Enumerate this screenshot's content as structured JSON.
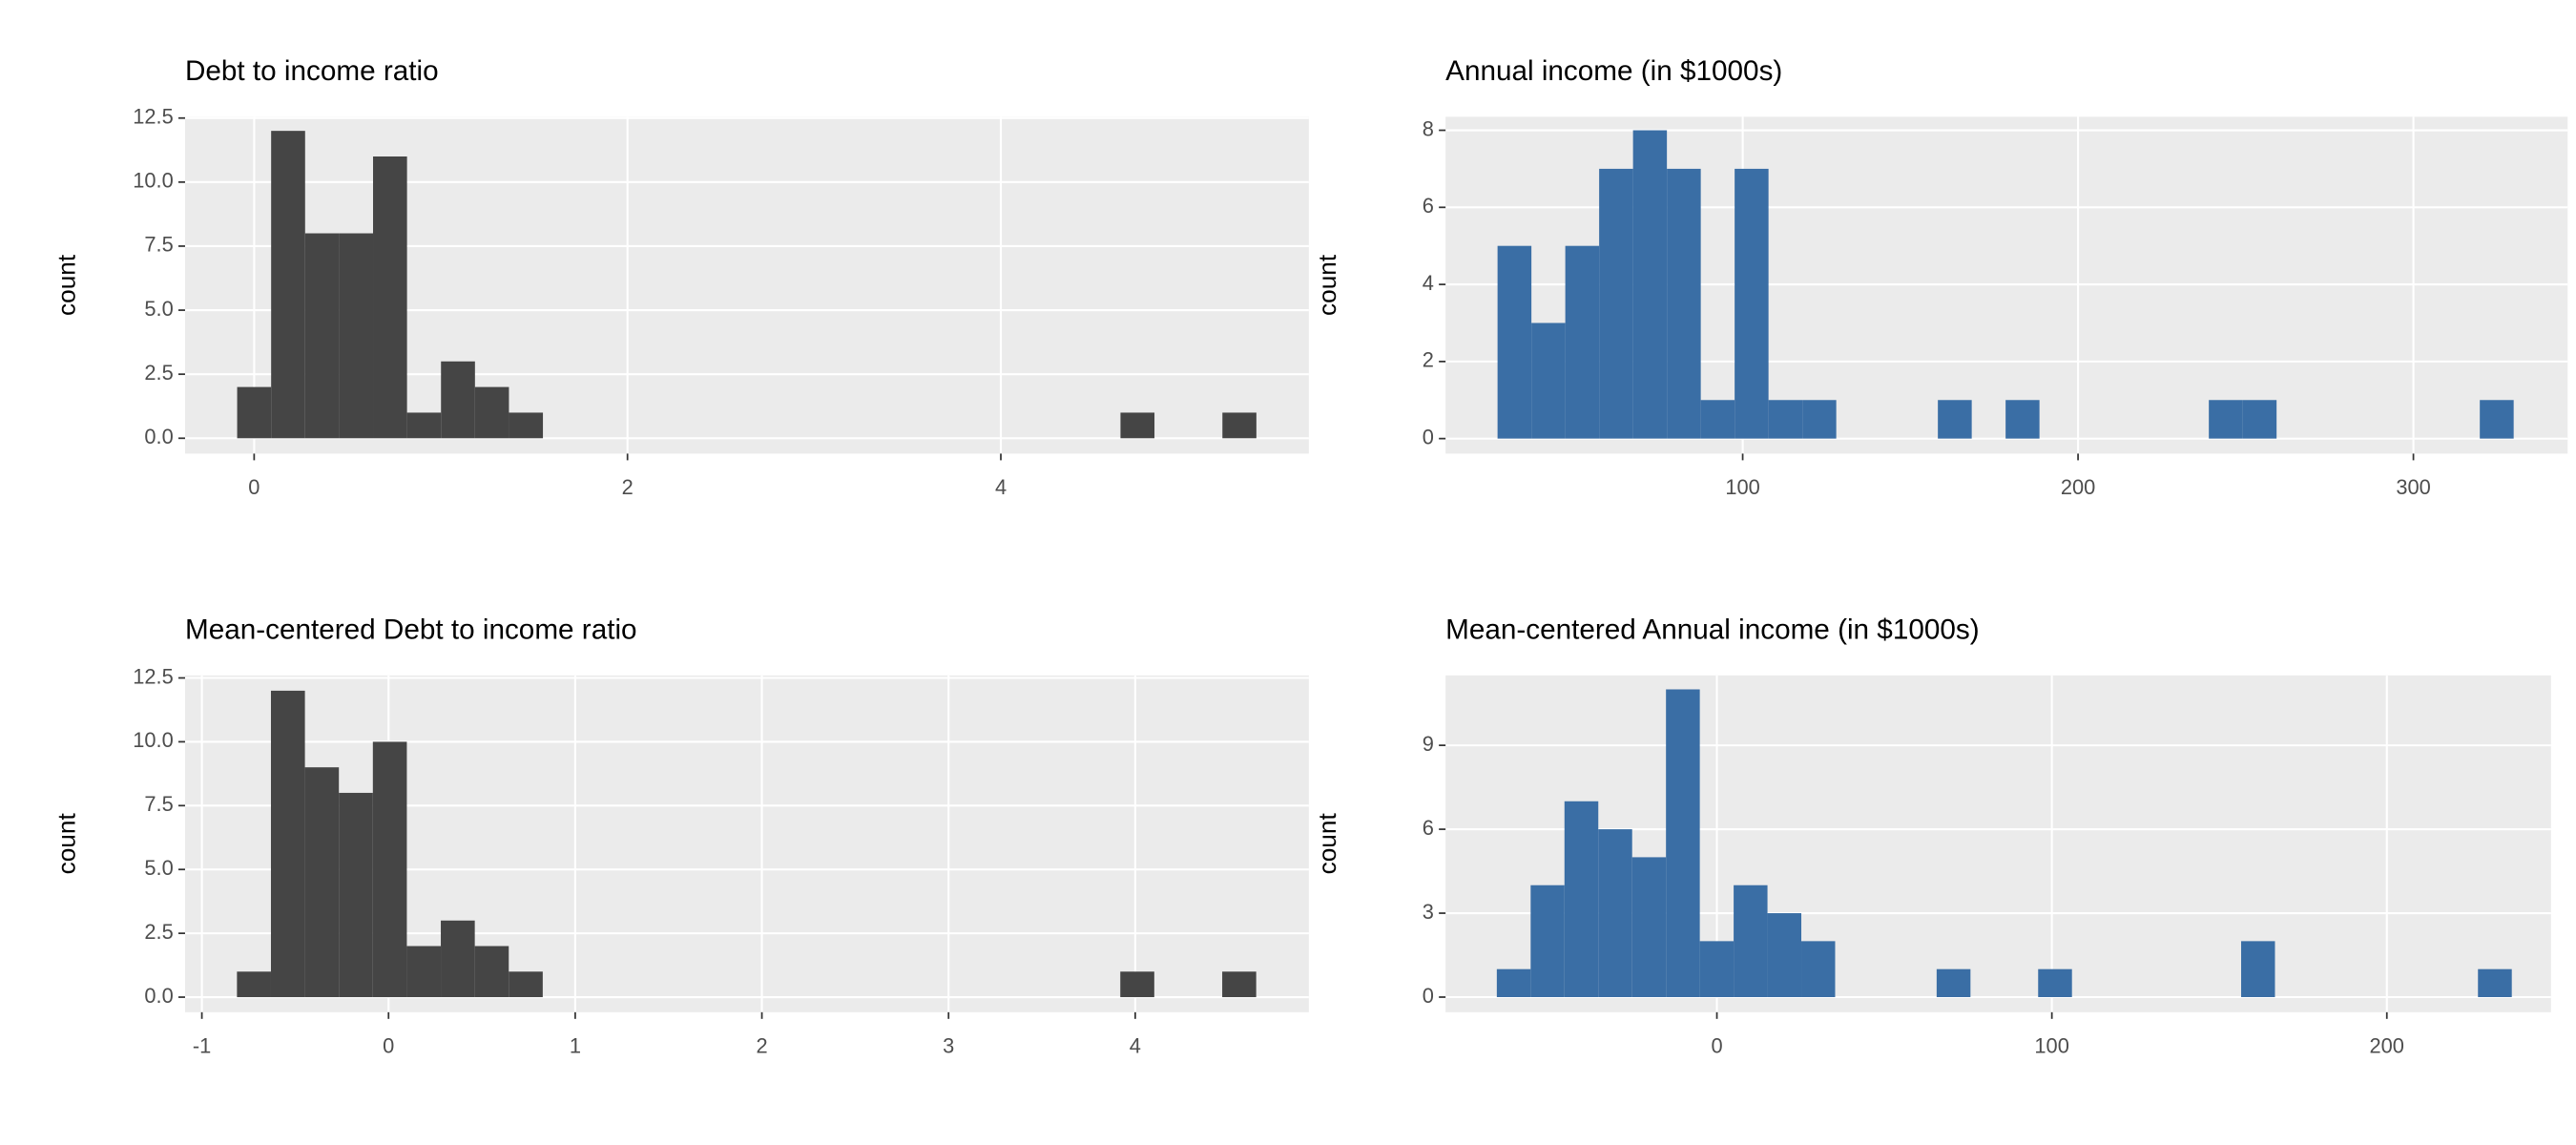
{
  "chart_data": [
    {
      "type": "histogram",
      "title": "Debt to income ratio",
      "ylabel": "count",
      "color": "#454545",
      "grid": true,
      "bins": [
        -0.091,
        0.091,
        0.273,
        0.455,
        0.637,
        0.819,
        1.001,
        1.183,
        1.365,
        1.547,
        1.729,
        1.911,
        2.093,
        2.275,
        2.457,
        2.639,
        2.821,
        3.003,
        3.185,
        3.367,
        3.549,
        3.731,
        3.913,
        4.095,
        4.277,
        4.459,
        4.641,
        4.823,
        5.005,
        5.187,
        5.369
      ],
      "values": [
        2,
        12,
        8,
        8,
        11,
        1,
        3,
        2,
        1,
        0,
        0,
        0,
        0,
        0,
        0,
        0,
        0,
        0,
        0,
        0,
        0,
        0,
        0,
        0,
        0,
        0,
        1,
        0,
        0,
        1
      ],
      "xlim": [
        -0.37,
        5.65
      ],
      "xticks": [
        0,
        2,
        4
      ],
      "ylim": [
        -0.6,
        12.55
      ],
      "yticks": [
        {
          "value": 0,
          "label": "0.0"
        },
        2.5,
        {
          "value": 5,
          "label": "5.0"
        },
        7.5,
        {
          "value": 10,
          "label": "10.0"
        },
        12.5
      ]
    },
    {
      "type": "histogram",
      "title": "Annual income (in $1000s)",
      "ylabel": "count",
      "color": "#3a6ea5",
      "grid": true,
      "bins": [
        26.9,
        37,
        47.1,
        57.2,
        67.3,
        77.4,
        87.5,
        97.6,
        107.7,
        117.8,
        127.9,
        138,
        148.1,
        158.2,
        168.3,
        178.4,
        188.5,
        198.6,
        208.7,
        218.8,
        228.9,
        239,
        249.1,
        259.2,
        269.3,
        279.4,
        289.5,
        299.6,
        309.7,
        319.8,
        329.9
      ],
      "values": [
        5,
        3,
        5,
        7,
        8,
        7,
        1,
        7,
        1,
        1,
        0,
        0,
        0,
        1,
        0,
        1,
        0,
        0,
        0,
        0,
        0,
        1,
        1,
        0,
        0,
        0,
        0,
        0,
        0,
        1
      ],
      "xlim": [
        11.4,
        346
      ],
      "xticks": [
        100,
        200,
        300
      ],
      "ylim": [
        -0.39,
        8.35
      ],
      "yticks": [
        0,
        2,
        4,
        6,
        8
      ]
    },
    {
      "type": "histogram",
      "title": "Mean-centered Debt to income ratio",
      "ylabel": "count",
      "color": "#454545",
      "grid": true,
      "bins": [
        -0.812,
        -0.63,
        -0.448,
        -0.266,
        -0.084,
        0.098,
        0.28,
        0.462,
        0.644,
        0.826,
        1.008,
        1.19,
        1.372,
        1.554,
        1.736,
        1.918,
        2.1,
        2.282,
        2.464,
        2.646,
        2.828,
        3.01,
        3.192,
        3.374,
        3.556,
        3.738,
        3.92,
        4.102,
        4.284,
        4.466,
        4.648
      ],
      "values": [
        1,
        12,
        9,
        8,
        10,
        2,
        3,
        2,
        1,
        0,
        0,
        0,
        0,
        0,
        0,
        0,
        0,
        0,
        0,
        0,
        0,
        0,
        0,
        0,
        0,
        0,
        1,
        0,
        0,
        1
      ],
      "xlim": [
        -1.09,
        4.93
      ],
      "xticks": [
        -1,
        0,
        1,
        2,
        3,
        4
      ],
      "ylim": [
        -0.59,
        12.6
      ],
      "yticks": [
        {
          "value": 0,
          "label": "0.0"
        },
        2.5,
        {
          "value": 5,
          "label": "5.0"
        },
        7.5,
        {
          "value": 10,
          "label": "10.0"
        },
        12.5
      ]
    },
    {
      "type": "histogram",
      "title": "Mean-centered Annual income (in $1000s)",
      "ylabel": "count",
      "color": "#3a6ea5",
      "grid": true,
      "bins": [
        -65.7,
        -55.6,
        -45.5,
        -35.4,
        -25.3,
        -15.2,
        -5.1,
        5,
        15.1,
        25.2,
        35.3,
        45.4,
        55.5,
        65.6,
        75.7,
        85.8,
        95.9,
        106,
        116.1,
        126.2,
        136.3,
        146.4,
        156.5,
        166.6,
        176.7,
        186.8,
        196.9,
        207,
        217.1,
        227.2,
        237.3
      ],
      "values": [
        1,
        4,
        7,
        6,
        5,
        11,
        2,
        4,
        3,
        2,
        0,
        0,
        0,
        1,
        0,
        0,
        1,
        0,
        0,
        0,
        0,
        0,
        2,
        0,
        0,
        0,
        0,
        0,
        0,
        1
      ],
      "xlim": [
        -81,
        249
      ],
      "xticks": [
        0,
        100,
        200
      ],
      "ylim": [
        -0.54,
        11.5
      ],
      "yticks": [
        0,
        3,
        6,
        9
      ]
    }
  ]
}
